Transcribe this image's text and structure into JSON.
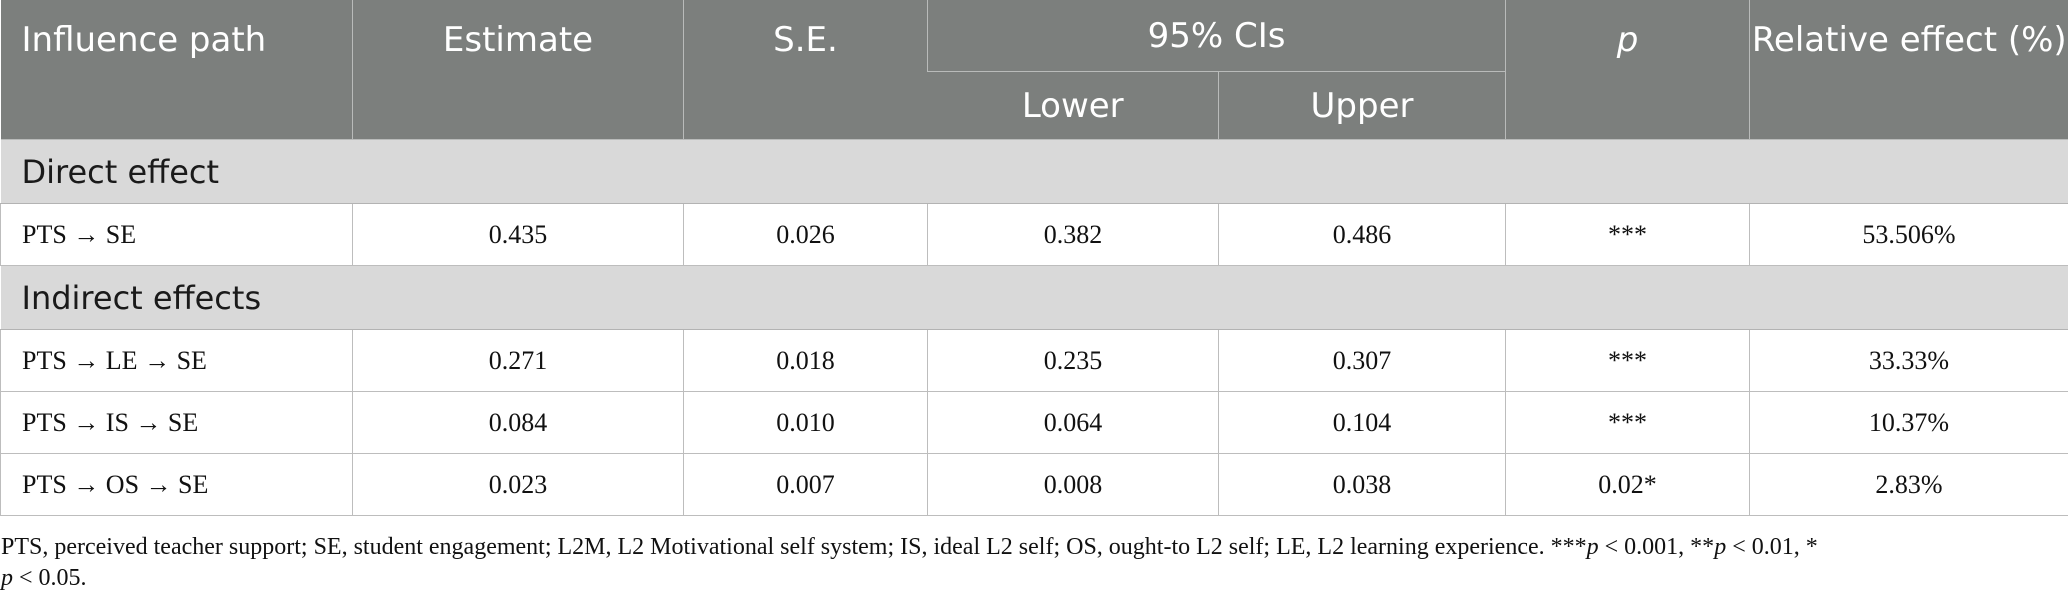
{
  "table": {
    "headers": {
      "path": "Influence path",
      "estimate": "Estimate",
      "se": "S.E.",
      "ci": "95% CIs",
      "lower": "Lower",
      "upper": "Upper",
      "p": "p",
      "relative": "Relative effect (%)"
    },
    "sections": [
      {
        "title": "Direct effect",
        "rows": [
          {
            "path": "PTS → SE",
            "estimate": "0.435",
            "se": "0.026",
            "lower": "0.382",
            "upper": "0.486",
            "p": "***",
            "relative": "53.506%"
          }
        ]
      },
      {
        "title": "Indirect effects",
        "rows": [
          {
            "path": "PTS → LE → SE",
            "estimate": "0.271",
            "se": "0.018",
            "lower": "0.235",
            "upper": "0.307",
            "p": "***",
            "relative": "33.33%"
          },
          {
            "path": "PTS → IS → SE",
            "estimate": "0.084",
            "se": "0.010",
            "lower": "0.064",
            "upper": "0.104",
            "p": "***",
            "relative": "10.37%"
          },
          {
            "path": "PTS → OS → SE",
            "estimate": "0.023",
            "se": "0.007",
            "lower": "0.008",
            "upper": "0.038",
            "p": "0.02*",
            "relative": "2.83%"
          }
        ]
      }
    ]
  },
  "footnote": {
    "text": "PTS, perceived teacher support; SE, student engagement; L2M, L2 Motivational self system; IS, ideal L2 self; OS, ought-to L2 self; LE, L2 learning experience. ***",
    "p1": "p",
    "t1": " < 0.001, **",
    "p2": "p",
    "t2": " < 0.01, *",
    "p3": "p",
    "t3": " < 0.05."
  }
}
